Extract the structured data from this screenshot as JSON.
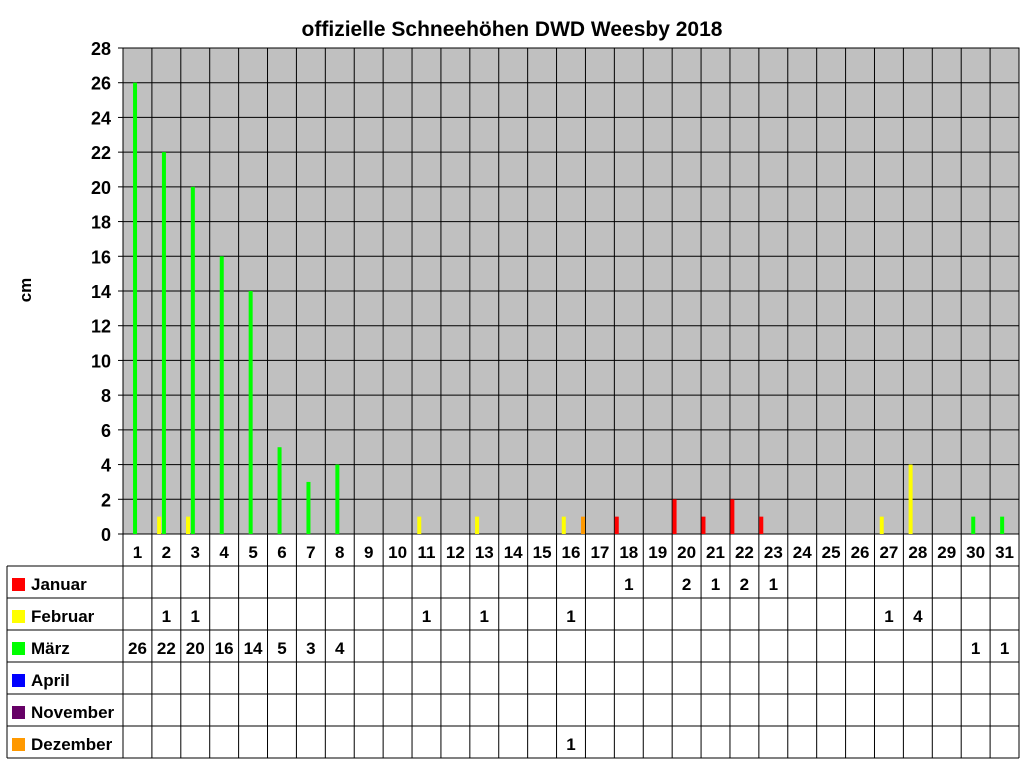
{
  "chart_data": {
    "type": "bar",
    "title": "offizielle Schneehöhen DWD Weesby 2018",
    "xlabel": "",
    "ylabel": "cm",
    "ylim": [
      0,
      28
    ],
    "yticks": [
      0,
      2,
      4,
      6,
      8,
      10,
      12,
      14,
      16,
      18,
      20,
      22,
      24,
      26,
      28
    ],
    "grid": true,
    "legend": "data-table-below",
    "categories": [
      "1",
      "2",
      "3",
      "4",
      "5",
      "6",
      "7",
      "8",
      "9",
      "10",
      "11",
      "12",
      "13",
      "14",
      "15",
      "16",
      "17",
      "18",
      "19",
      "20",
      "21",
      "22",
      "23",
      "24",
      "25",
      "26",
      "27",
      "28",
      "29",
      "30",
      "31"
    ],
    "series": [
      {
        "name": "Januar",
        "color": "#ff0000",
        "values": [
          null,
          null,
          null,
          null,
          null,
          null,
          null,
          null,
          null,
          null,
          null,
          null,
          null,
          null,
          null,
          null,
          null,
          1,
          null,
          2,
          1,
          2,
          1,
          null,
          null,
          null,
          null,
          null,
          null,
          null,
          null
        ]
      },
      {
        "name": "Februar",
        "color": "#ffff00",
        "values": [
          null,
          1,
          1,
          null,
          null,
          null,
          null,
          null,
          null,
          null,
          1,
          null,
          1,
          null,
          null,
          1,
          null,
          null,
          null,
          null,
          null,
          null,
          null,
          null,
          null,
          null,
          1,
          4,
          null,
          null,
          null
        ]
      },
      {
        "name": "März",
        "color": "#00ff00",
        "values": [
          26,
          22,
          20,
          16,
          14,
          5,
          3,
          4,
          null,
          null,
          null,
          null,
          null,
          null,
          null,
          null,
          null,
          null,
          null,
          null,
          null,
          null,
          null,
          null,
          null,
          null,
          null,
          null,
          null,
          1,
          1
        ]
      },
      {
        "name": "April",
        "color": "#0000ff",
        "values": [
          null,
          null,
          null,
          null,
          null,
          null,
          null,
          null,
          null,
          null,
          null,
          null,
          null,
          null,
          null,
          null,
          null,
          null,
          null,
          null,
          null,
          null,
          null,
          null,
          null,
          null,
          null,
          null,
          null,
          null,
          null
        ]
      },
      {
        "name": "November",
        "color": "#660066",
        "values": [
          null,
          null,
          null,
          null,
          null,
          null,
          null,
          null,
          null,
          null,
          null,
          null,
          null,
          null,
          null,
          null,
          null,
          null,
          null,
          null,
          null,
          null,
          null,
          null,
          null,
          null,
          null,
          null,
          null,
          null,
          null
        ]
      },
      {
        "name": "Dezember",
        "color": "#ff9900",
        "values": [
          null,
          null,
          null,
          null,
          null,
          null,
          null,
          null,
          null,
          null,
          null,
          null,
          null,
          null,
          null,
          1,
          null,
          null,
          null,
          null,
          null,
          null,
          null,
          null,
          null,
          null,
          null,
          null,
          null,
          null,
          null
        ]
      }
    ]
  }
}
